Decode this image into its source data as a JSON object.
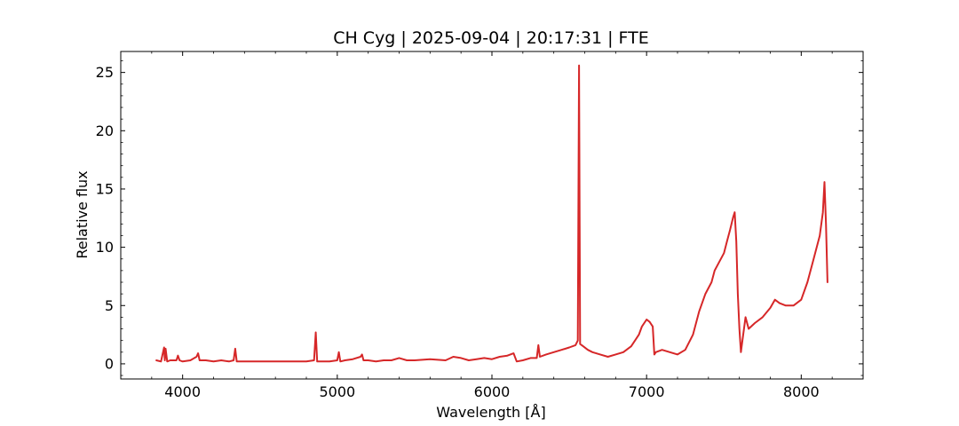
{
  "chart_data": {
    "type": "line",
    "title": "CH Cyg | 2025-09-04 | 20:17:31 | FTE",
    "xlabel": "Wavelength [Å]",
    "ylabel": "Relative flux",
    "xlim": [
      3600,
      8400
    ],
    "ylim": [
      -1.3,
      26.8
    ],
    "xticks": [
      4000,
      5000,
      6000,
      7000,
      8000
    ],
    "yticks": [
      0,
      5,
      10,
      15,
      20,
      25
    ],
    "grid": false,
    "line_color": "#d62728",
    "series": [
      {
        "x": [
          3830,
          3860,
          3880,
          3885,
          3890,
          3900,
          3920,
          3960,
          3970,
          3980,
          4000,
          4050,
          4090,
          4100,
          4110,
          4150,
          4200,
          4250,
          4300,
          4330,
          4340,
          4350,
          4400,
          4500,
          4600,
          4700,
          4800,
          4850,
          4861,
          4870,
          4900,
          4950,
          5000,
          5010,
          5020,
          5050,
          5100,
          5150,
          5160,
          5170,
          5200,
          5250,
          5300,
          5350,
          5400,
          5450,
          5500,
          5600,
          5700,
          5750,
          5800,
          5850,
          5900,
          5950,
          6000,
          6050,
          6100,
          6140,
          6160,
          6200,
          6250,
          6290,
          6300,
          6310,
          6350,
          6400,
          6450,
          6500,
          6540,
          6555,
          6563,
          6570,
          6590,
          6620,
          6650,
          6700,
          6750,
          6800,
          6850,
          6900,
          6950,
          6970,
          7000,
          7020,
          7040,
          7050,
          7060,
          7100,
          7150,
          7200,
          7250,
          7300,
          7340,
          7380,
          7420,
          7440,
          7460,
          7500,
          7520,
          7540,
          7560,
          7570,
          7580,
          7590,
          7600,
          7610,
          7620,
          7640,
          7660,
          7700,
          7750,
          7800,
          7830,
          7860,
          7900,
          7950,
          8000,
          8040,
          8080,
          8120,
          8140,
          8150,
          8160,
          8170
        ],
        "y": [
          0.3,
          0.2,
          1.4,
          0.3,
          1.3,
          0.2,
          0.3,
          0.3,
          0.7,
          0.3,
          0.2,
          0.3,
          0.6,
          0.9,
          0.3,
          0.3,
          0.2,
          0.3,
          0.2,
          0.3,
          1.3,
          0.2,
          0.2,
          0.2,
          0.2,
          0.2,
          0.2,
          0.3,
          2.7,
          0.2,
          0.2,
          0.2,
          0.3,
          1.0,
          0.2,
          0.3,
          0.4,
          0.6,
          0.8,
          0.3,
          0.3,
          0.2,
          0.3,
          0.3,
          0.5,
          0.3,
          0.3,
          0.4,
          0.3,
          0.6,
          0.5,
          0.3,
          0.4,
          0.5,
          0.4,
          0.6,
          0.7,
          0.9,
          0.2,
          0.3,
          0.5,
          0.5,
          1.6,
          0.6,
          0.8,
          1.0,
          1.2,
          1.4,
          1.6,
          2.0,
          25.6,
          1.7,
          1.5,
          1.2,
          1.0,
          0.8,
          0.6,
          0.8,
          1.0,
          1.5,
          2.5,
          3.2,
          3.8,
          3.6,
          3.2,
          0.8,
          1.0,
          1.2,
          1.0,
          0.8,
          1.2,
          2.5,
          4.5,
          6.0,
          7.0,
          8.0,
          8.5,
          9.5,
          10.5,
          11.5,
          12.6,
          13.0,
          10.5,
          6.0,
          3.0,
          1.0,
          2.0,
          4.0,
          3.0,
          3.5,
          4.0,
          4.8,
          5.5,
          5.2,
          5.0,
          5.0,
          5.5,
          7.0,
          9.0,
          11.0,
          13.0,
          15.6,
          12.0,
          7.0
        ]
      }
    ]
  }
}
